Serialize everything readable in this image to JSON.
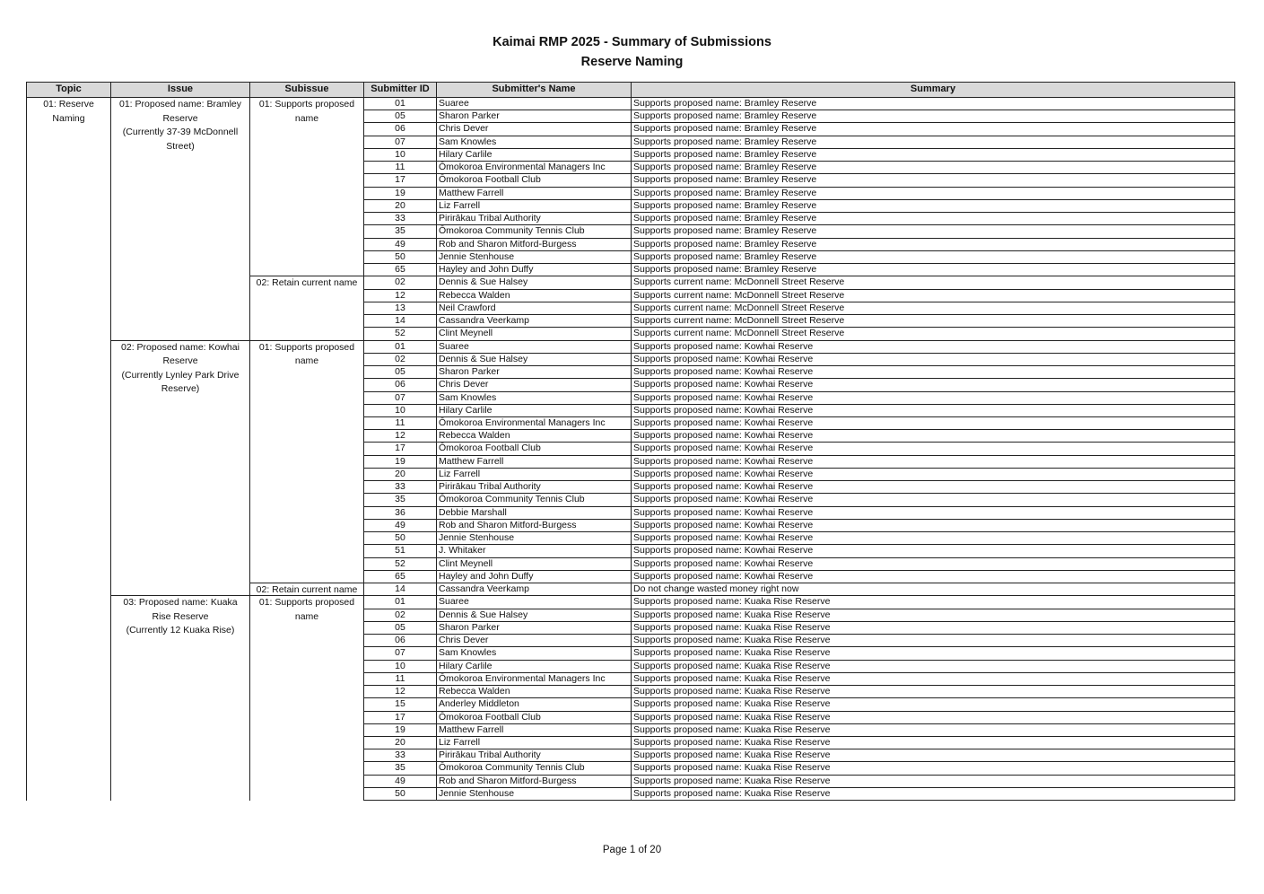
{
  "header": {
    "title": "Kaimai RMP 2025 - Summary of Submissions",
    "subtitle": "Reserve Naming"
  },
  "table": {
    "columns": [
      "Topic",
      "Issue",
      "Subissue",
      "Submitter ID",
      "Submitter's Name",
      "Summary"
    ],
    "topics": [
      {
        "label": "01: Reserve Naming",
        "issues": [
          {
            "name": "01: Proposed name: Bramley Reserve",
            "note": "(Currently 37-39 McDonnell Street)",
            "subissues": [
              {
                "label": "01: Supports proposed name",
                "rows": [
                  [
                    "01",
                    "Suaree",
                    "Supports proposed name: Bramley Reserve"
                  ],
                  [
                    "05",
                    "Sharon Parker",
                    "Supports proposed name: Bramley Reserve"
                  ],
                  [
                    "06",
                    "Chris Dever",
                    "Supports proposed name: Bramley Reserve"
                  ],
                  [
                    "07",
                    "Sam Knowles",
                    "Supports proposed name: Bramley Reserve"
                  ],
                  [
                    "10",
                    "Hilary Carlile",
                    "Supports proposed name: Bramley Reserve"
                  ],
                  [
                    "11",
                    "Ōmokoroa Environmental Managers Inc",
                    "Supports proposed name: Bramley Reserve"
                  ],
                  [
                    "17",
                    "Ōmokoroa Football Club",
                    "Supports proposed name: Bramley Reserve"
                  ],
                  [
                    "19",
                    "Matthew Farrell",
                    "Supports proposed name: Bramley Reserve"
                  ],
                  [
                    "20",
                    "Liz Farrell",
                    "Supports proposed name: Bramley Reserve"
                  ],
                  [
                    "33",
                    "Pirirākau Tribal Authority",
                    "Supports proposed name: Bramley Reserve"
                  ],
                  [
                    "35",
                    "Ōmokoroa Community Tennis Club",
                    "Supports proposed name: Bramley Reserve"
                  ],
                  [
                    "49",
                    "Rob and Sharon Mitford-Burgess",
                    "Supports proposed name: Bramley Reserve"
                  ],
                  [
                    "50",
                    "Jennie Stenhouse",
                    "Supports proposed name: Bramley Reserve"
                  ],
                  [
                    "65",
                    "Hayley and John Duffy",
                    "Supports proposed name: Bramley Reserve"
                  ]
                ]
              },
              {
                "label": "02: Retain current name",
                "rows": [
                  [
                    "02",
                    "Dennis & Sue Halsey",
                    "Supports current name: McDonnell Street Reserve"
                  ],
                  [
                    "12",
                    "Rebecca Walden",
                    "Supports current name: McDonnell Street Reserve"
                  ],
                  [
                    "13",
                    "Neil Crawford",
                    "Supports current name: McDonnell Street Reserve"
                  ],
                  [
                    "14",
                    "Cassandra Veerkamp",
                    "Supports current name: McDonnell Street Reserve"
                  ],
                  [
                    "52",
                    "Clint Meynell",
                    "Supports current name: McDonnell Street Reserve"
                  ]
                ]
              }
            ]
          },
          {
            "name": "02: Proposed name: Kowhai Reserve",
            "note": "(Currently Lynley Park Drive Reserve)",
            "subissues": [
              {
                "label": "01: Supports proposed name",
                "rows": [
                  [
                    "01",
                    "Suaree",
                    "Supports proposed name: Kowhai Reserve"
                  ],
                  [
                    "02",
                    "Dennis & Sue Halsey",
                    "Supports proposed name: Kowhai Reserve"
                  ],
                  [
                    "05",
                    "Sharon Parker",
                    "Supports proposed name: Kowhai Reserve"
                  ],
                  [
                    "06",
                    "Chris Dever",
                    "Supports proposed name: Kowhai Reserve"
                  ],
                  [
                    "07",
                    "Sam Knowles",
                    "Supports proposed name: Kowhai Reserve"
                  ],
                  [
                    "10",
                    "Hilary Carlile",
                    "Supports proposed name: Kowhai Reserve"
                  ],
                  [
                    "11",
                    "Ōmokoroa Environmental Managers Inc",
                    "Supports proposed name: Kowhai Reserve"
                  ],
                  [
                    "12",
                    "Rebecca Walden",
                    "Supports proposed name: Kowhai Reserve"
                  ],
                  [
                    "17",
                    "Ōmokoroa Football Club",
                    "Supports proposed name: Kowhai Reserve"
                  ],
                  [
                    "19",
                    "Matthew Farrell",
                    "Supports proposed name: Kowhai Reserve"
                  ],
                  [
                    "20",
                    "Liz Farrell",
                    "Supports proposed name: Kowhai Reserve"
                  ],
                  [
                    "33",
                    "Pirirākau Tribal Authority",
                    "Supports proposed name: Kowhai Reserve"
                  ],
                  [
                    "35",
                    "Ōmokoroa Community Tennis Club",
                    "Supports proposed name: Kowhai Reserve"
                  ],
                  [
                    "36",
                    "Debbie Marshall",
                    "Supports proposed name: Kowhai Reserve"
                  ],
                  [
                    "49",
                    "Rob and Sharon Mitford-Burgess",
                    "Supports proposed name: Kowhai Reserve"
                  ],
                  [
                    "50",
                    "Jennie Stenhouse",
                    "Supports proposed name: Kowhai Reserve"
                  ],
                  [
                    "51",
                    "J. Whitaker",
                    "Supports proposed name: Kowhai Reserve"
                  ],
                  [
                    "52",
                    "Clint Meynell",
                    "Supports proposed name: Kowhai Reserve"
                  ],
                  [
                    "65",
                    "Hayley and John Duffy",
                    "Supports proposed name: Kowhai Reserve"
                  ]
                ]
              },
              {
                "label": "02: Retain current name",
                "rows": [
                  [
                    "14",
                    "Cassandra Veerkamp",
                    "Do not change wasted money right now"
                  ]
                ]
              }
            ]
          },
          {
            "name": "03: Proposed name: Kuaka Rise Reserve",
            "note": "(Currently 12 Kuaka Rise)",
            "subissues": [
              {
                "label": "01: Supports proposed name",
                "rows": [
                  [
                    "01",
                    "Suaree",
                    "Supports proposed name: Kuaka Rise Reserve"
                  ],
                  [
                    "02",
                    "Dennis & Sue Halsey",
                    "Supports proposed name: Kuaka Rise Reserve"
                  ],
                  [
                    "05",
                    "Sharon Parker",
                    "Supports proposed name: Kuaka Rise Reserve"
                  ],
                  [
                    "06",
                    "Chris Dever",
                    "Supports proposed name: Kuaka Rise Reserve"
                  ],
                  [
                    "07",
                    "Sam Knowles",
                    "Supports proposed name: Kuaka Rise Reserve"
                  ],
                  [
                    "10",
                    "Hilary Carlile",
                    "Supports proposed name: Kuaka Rise Reserve"
                  ],
                  [
                    "11",
                    "Ōmokoroa Environmental Managers Inc",
                    "Supports proposed name: Kuaka Rise Reserve"
                  ],
                  [
                    "12",
                    "Rebecca Walden",
                    "Supports proposed name: Kuaka Rise Reserve"
                  ],
                  [
                    "15",
                    "Anderley Middleton",
                    "Supports proposed name: Kuaka Rise Reserve"
                  ],
                  [
                    "17",
                    "Ōmokoroa Football Club",
                    "Supports proposed name: Kuaka Rise Reserve"
                  ],
                  [
                    "19",
                    "Matthew Farrell",
                    "Supports proposed name: Kuaka Rise Reserve"
                  ],
                  [
                    "20",
                    "Liz Farrell",
                    "Supports proposed name: Kuaka Rise Reserve"
                  ],
                  [
                    "33",
                    "Pirirākau Tribal Authority",
                    "Supports proposed name: Kuaka Rise Reserve"
                  ],
                  [
                    "35",
                    "Ōmokoroa Community Tennis Club",
                    "Supports proposed name: Kuaka Rise Reserve"
                  ],
                  [
                    "49",
                    "Rob and Sharon Mitford-Burgess",
                    "Supports proposed name: Kuaka Rise Reserve"
                  ],
                  [
                    "50",
                    "Jennie Stenhouse",
                    "Supports proposed name: Kuaka Rise Reserve"
                  ]
                ]
              }
            ]
          }
        ]
      }
    ]
  },
  "footer": "Page 1 of 20"
}
